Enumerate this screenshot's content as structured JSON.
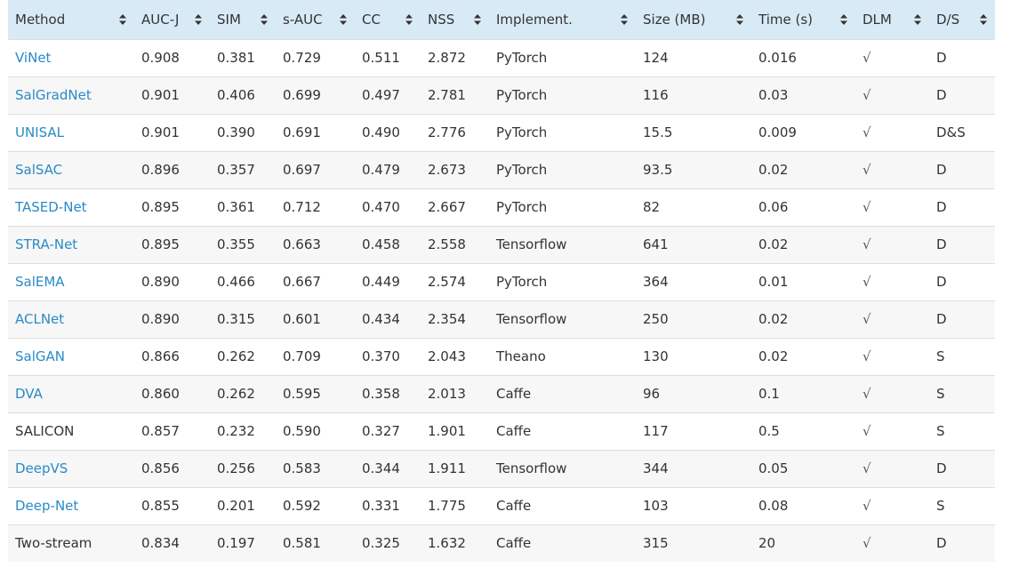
{
  "columns": [
    {
      "key": "method",
      "label": "Method"
    },
    {
      "key": "aucj",
      "label": "AUC-J"
    },
    {
      "key": "sim",
      "label": "SIM"
    },
    {
      "key": "sauc",
      "label": "s-AUC"
    },
    {
      "key": "cc",
      "label": "CC"
    },
    {
      "key": "nss",
      "label": "NSS"
    },
    {
      "key": "impl",
      "label": "Implement."
    },
    {
      "key": "size",
      "label": "Size (MB)"
    },
    {
      "key": "time",
      "label": "Time (s)"
    },
    {
      "key": "dlm",
      "label": "DLM"
    },
    {
      "key": "ds",
      "label": "D/S"
    }
  ],
  "rows": [
    {
      "method": "ViNet",
      "link": true,
      "aucj": "0.908",
      "sim": "0.381",
      "sauc": "0.729",
      "cc": "0.511",
      "nss": "2.872",
      "impl": "PyTorch",
      "size": "124",
      "time": "0.016",
      "dlm": "√",
      "ds": "D"
    },
    {
      "method": "SalGradNet",
      "link": true,
      "aucj": "0.901",
      "sim": "0.406",
      "sauc": "0.699",
      "cc": "0.497",
      "nss": "2.781",
      "impl": "PyTorch",
      "size": "116",
      "time": "0.03",
      "dlm": "√",
      "ds": "D"
    },
    {
      "method": "UNISAL",
      "link": true,
      "aucj": "0.901",
      "sim": "0.390",
      "sauc": "0.691",
      "cc": "0.490",
      "nss": "2.776",
      "impl": "PyTorch",
      "size": "15.5",
      "time": "0.009",
      "dlm": "√",
      "ds": "D&S"
    },
    {
      "method": "SalSAC",
      "link": true,
      "aucj": "0.896",
      "sim": "0.357",
      "sauc": "0.697",
      "cc": "0.479",
      "nss": "2.673",
      "impl": "PyTorch",
      "size": "93.5",
      "time": "0.02",
      "dlm": "√",
      "ds": "D"
    },
    {
      "method": "TASED-Net",
      "link": true,
      "aucj": "0.895",
      "sim": "0.361",
      "sauc": "0.712",
      "cc": "0.470",
      "nss": "2.667",
      "impl": "PyTorch",
      "size": "82",
      "time": "0.06",
      "dlm": "√",
      "ds": "D"
    },
    {
      "method": "STRA-Net",
      "link": true,
      "aucj": "0.895",
      "sim": "0.355",
      "sauc": "0.663",
      "cc": "0.458",
      "nss": "2.558",
      "impl": "Tensorflow",
      "size": "641",
      "time": "0.02",
      "dlm": "√",
      "ds": "D"
    },
    {
      "method": "SalEMA",
      "link": true,
      "aucj": "0.890",
      "sim": "0.466",
      "sauc": "0.667",
      "cc": "0.449",
      "nss": "2.574",
      "impl": "PyTorch",
      "size": "364",
      "time": "0.01",
      "dlm": "√",
      "ds": "D"
    },
    {
      "method": "ACLNet",
      "link": true,
      "aucj": "0.890",
      "sim": "0.315",
      "sauc": "0.601",
      "cc": "0.434",
      "nss": "2.354",
      "impl": "Tensorflow",
      "size": "250",
      "time": "0.02",
      "dlm": "√",
      "ds": "D"
    },
    {
      "method": "SalGAN",
      "link": true,
      "aucj": "0.866",
      "sim": "0.262",
      "sauc": "0.709",
      "cc": "0.370",
      "nss": "2.043",
      "impl": "Theano",
      "size": "130",
      "time": "0.02",
      "dlm": "√",
      "ds": "S"
    },
    {
      "method": "DVA",
      "link": true,
      "aucj": "0.860",
      "sim": "0.262",
      "sauc": "0.595",
      "cc": "0.358",
      "nss": "2.013",
      "impl": "Caffe",
      "size": "96",
      "time": "0.1",
      "dlm": "√",
      "ds": "S"
    },
    {
      "method": "SALICON",
      "link": false,
      "aucj": "0.857",
      "sim": "0.232",
      "sauc": "0.590",
      "cc": "0.327",
      "nss": "1.901",
      "impl": "Caffe",
      "size": "117",
      "time": "0.5",
      "dlm": "√",
      "ds": "S"
    },
    {
      "method": "DeepVS",
      "link": true,
      "aucj": "0.856",
      "sim": "0.256",
      "sauc": "0.583",
      "cc": "0.344",
      "nss": "1.911",
      "impl": "Tensorflow",
      "size": "344",
      "time": "0.05",
      "dlm": "√",
      "ds": "D"
    },
    {
      "method": "Deep-Net",
      "link": true,
      "aucj": "0.855",
      "sim": "0.201",
      "sauc": "0.592",
      "cc": "0.331",
      "nss": "1.775",
      "impl": "Caffe",
      "size": "103",
      "time": "0.08",
      "dlm": "√",
      "ds": "S"
    },
    {
      "method": "Two-stream",
      "link": false,
      "aucj": "0.834",
      "sim": "0.197",
      "sauc": "0.581",
      "cc": "0.325",
      "nss": "1.632",
      "impl": "Caffe",
      "size": "315",
      "time": "20",
      "dlm": "√",
      "ds": "D"
    }
  ],
  "colors": {
    "header_bg": "#d9eaf7",
    "link": "#2a8ac6",
    "row_alt": "#f7f7f7",
    "text": "#333333"
  },
  "icons": {
    "sort": "sort-updown-icon"
  }
}
